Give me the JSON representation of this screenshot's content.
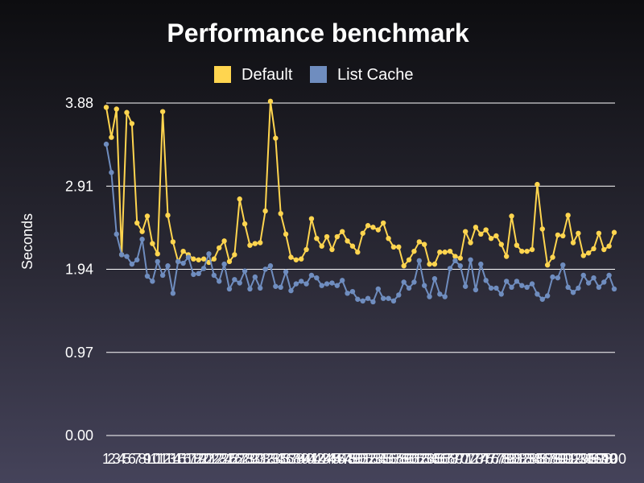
{
  "chart_data": {
    "type": "line",
    "title": "Performance benchmark",
    "ylabel": "Seconds",
    "xlabel": "",
    "ylim": [
      0,
      3.88
    ],
    "yticks": [
      "0.00",
      "0.97",
      "1.94",
      "2.91",
      "3.88"
    ],
    "grid": true,
    "legend_position": "top",
    "x": [
      1,
      2,
      3,
      4,
      5,
      6,
      7,
      8,
      9,
      10,
      11,
      12,
      13,
      14,
      15,
      16,
      17,
      18,
      19,
      20,
      21,
      22,
      23,
      24,
      25,
      26,
      27,
      28,
      29,
      30,
      31,
      32,
      33,
      34,
      35,
      36,
      37,
      38,
      39,
      40,
      41,
      42,
      43,
      44,
      45,
      46,
      47,
      48,
      49,
      50,
      51,
      52,
      53,
      54,
      55,
      56,
      57,
      58,
      59,
      60,
      61,
      62,
      63,
      64,
      65,
      66,
      67,
      68,
      69,
      70,
      71,
      72,
      73,
      74,
      75,
      76,
      77,
      78,
      79,
      80,
      81,
      82,
      83,
      84,
      85,
      86,
      87,
      88,
      89,
      90,
      91,
      92,
      93,
      94,
      95,
      96,
      97,
      98,
      99,
      100
    ],
    "series": [
      {
        "name": "Default",
        "color": "#ffd54f",
        "values": [
          3.83,
          3.48,
          3.81,
          2.11,
          3.77,
          3.64,
          2.48,
          2.38,
          2.56,
          2.24,
          2.12,
          3.78,
          2.57,
          2.26,
          2.03,
          2.15,
          2.11,
          2.06,
          2.05,
          2.06,
          2.02,
          2.06,
          2.19,
          2.27,
          2.03,
          2.11,
          2.76,
          2.47,
          2.22,
          2.24,
          2.25,
          2.62,
          3.9,
          3.47,
          2.59,
          2.35,
          2.08,
          2.05,
          2.06,
          2.17,
          2.53,
          2.3,
          2.21,
          2.32,
          2.17,
          2.32,
          2.38,
          2.27,
          2.21,
          2.14,
          2.36,
          2.45,
          2.43,
          2.4,
          2.48,
          2.3,
          2.2,
          2.2,
          1.98,
          2.05,
          2.15,
          2.26,
          2.23,
          2.0,
          2.0,
          2.14,
          2.14,
          2.15,
          2.09,
          2.07,
          2.38,
          2.25,
          2.43,
          2.35,
          2.4,
          2.3,
          2.33,
          2.23,
          2.09,
          2.56,
          2.22,
          2.15,
          2.15,
          2.17,
          2.93,
          2.41,
          1.99,
          2.08,
          2.34,
          2.33,
          2.57,
          2.25,
          2.36,
          2.1,
          2.13,
          2.18,
          2.36,
          2.17,
          2.21,
          2.37
        ]
      },
      {
        "name": "List Cache",
        "color": "#6f8dbf",
        "values": [
          3.4,
          3.07,
          2.35,
          2.11,
          2.09,
          2.0,
          2.05,
          2.29,
          1.86,
          1.8,
          2.03,
          1.87,
          1.98,
          1.66,
          2.03,
          2.01,
          2.08,
          1.88,
          1.89,
          1.95,
          2.12,
          1.87,
          1.8,
          2.0,
          1.71,
          1.82,
          1.78,
          1.92,
          1.71,
          1.85,
          1.72,
          1.94,
          1.98,
          1.74,
          1.73,
          1.91,
          1.69,
          1.77,
          1.8,
          1.77,
          1.87,
          1.84,
          1.75,
          1.77,
          1.78,
          1.75,
          1.81,
          1.66,
          1.68,
          1.59,
          1.57,
          1.6,
          1.56,
          1.71,
          1.6,
          1.6,
          1.57,
          1.64,
          1.79,
          1.72,
          1.79,
          2.04,
          1.75,
          1.62,
          1.83,
          1.65,
          1.62,
          1.95,
          2.04,
          1.98,
          1.74,
          2.05,
          1.7,
          2.0,
          1.81,
          1.72,
          1.72,
          1.65,
          1.8,
          1.73,
          1.8,
          1.75,
          1.73,
          1.77,
          1.65,
          1.59,
          1.63,
          1.85,
          1.84,
          1.99,
          1.73,
          1.67,
          1.72,
          1.87,
          1.78,
          1.84,
          1.73,
          1.79,
          1.87,
          1.71
        ]
      }
    ]
  }
}
